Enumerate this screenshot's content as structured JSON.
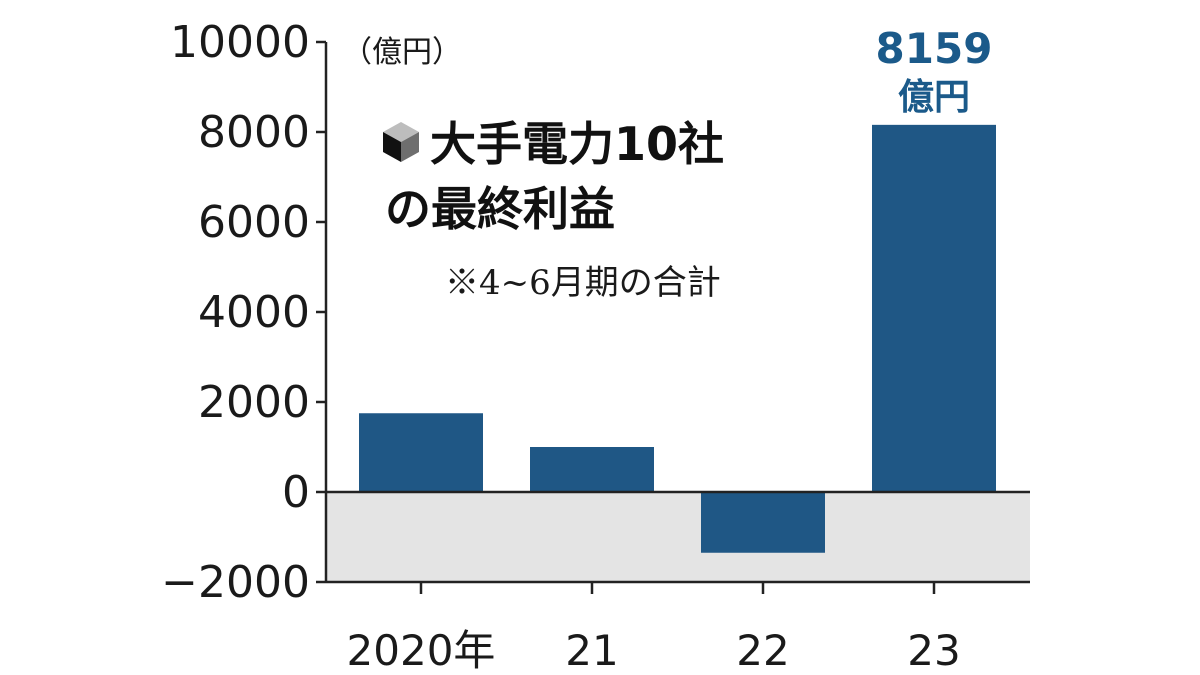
{
  "chart_data": {
    "type": "bar",
    "title": "大手電力10社",
    "subtitle": "の最終利益",
    "note": "※4~6月期の合計",
    "unit_label": "（億円）",
    "categories": [
      "2020年",
      "21",
      "22",
      "23"
    ],
    "values": [
      1750,
      1000,
      -1350,
      8159
    ],
    "ylim": [
      -2000,
      10000
    ],
    "yticks": [
      "10000",
      "8000",
      "6000",
      "4000",
      "2000",
      "0",
      "−2000"
    ],
    "annotation": {
      "value_label": "8159",
      "unit": "億円"
    },
    "bar_color": "#1f5785",
    "negative_region_color": "#e4e4e4",
    "grid": false
  }
}
